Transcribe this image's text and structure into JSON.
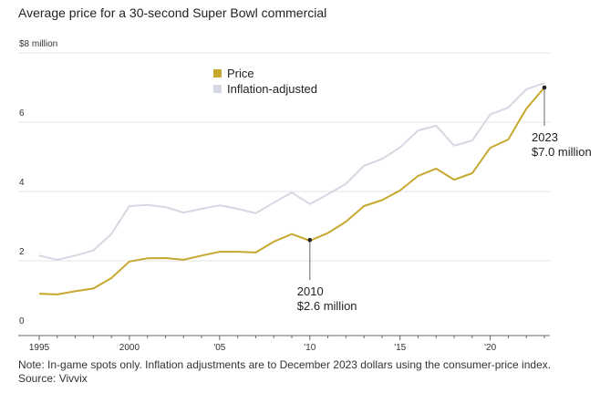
{
  "chart_data": {
    "type": "line",
    "title": "Average price for a 30-second Super Bowl commercial",
    "xlabel": "",
    "ylabel": "",
    "y_unit_label": "$8 million",
    "ylim": [
      0,
      8
    ],
    "xlim": [
      1995,
      2023
    ],
    "grid": true,
    "yticks": [
      {
        "value": 0,
        "label": "0"
      },
      {
        "value": 2,
        "label": "2"
      },
      {
        "value": 4,
        "label": "4"
      },
      {
        "value": 6,
        "label": "6"
      },
      {
        "value": 8,
        "label": "$8 million"
      }
    ],
    "xticks_major": [
      {
        "value": 1995,
        "label": "1995"
      },
      {
        "value": 2000,
        "label": "2000"
      },
      {
        "value": 2005,
        "label": "'05"
      },
      {
        "value": 2010,
        "label": "'10"
      },
      {
        "value": 2015,
        "label": "'15"
      },
      {
        "value": 2020,
        "label": "'20"
      }
    ],
    "x": [
      1995,
      1996,
      1997,
      1998,
      1999,
      2000,
      2001,
      2002,
      2003,
      2004,
      2005,
      2006,
      2007,
      2008,
      2009,
      2010,
      2011,
      2012,
      2013,
      2014,
      2015,
      2016,
      2017,
      2018,
      2019,
      2020,
      2021,
      2022,
      2023
    ],
    "series": [
      {
        "name": "Inflation-adjusted",
        "color": "#d5d8e2",
        "values": [
          2.15,
          2.03,
          2.15,
          2.3,
          2.77,
          3.58,
          3.61,
          3.55,
          3.39,
          3.5,
          3.6,
          3.5,
          3.37,
          3.68,
          3.97,
          3.64,
          3.92,
          4.22,
          4.74,
          4.94,
          5.27,
          5.76,
          5.9,
          5.32,
          5.47,
          6.22,
          6.42,
          6.95,
          7.13
        ]
      },
      {
        "name": "Price",
        "color": "#c6a82f",
        "values": [
          1.05,
          1.03,
          1.12,
          1.2,
          1.5,
          1.98,
          2.07,
          2.08,
          2.03,
          2.15,
          2.26,
          2.26,
          2.24,
          2.55,
          2.77,
          2.58,
          2.8,
          3.13,
          3.58,
          3.75,
          4.03,
          4.45,
          4.66,
          4.34,
          4.53,
          5.26,
          5.5,
          6.39,
          7.0
        ]
      }
    ],
    "legend": {
      "placement": "top-center",
      "entries": [
        {
          "label": "Price",
          "color": "#c6a82f"
        },
        {
          "label": "Inflation-adjusted",
          "color": "#d5d8e2"
        }
      ]
    },
    "annotations": [
      {
        "series": "Price",
        "x": 2010,
        "y": 2.6,
        "line1": "2010",
        "line2": "$2.6 million",
        "position": "below"
      },
      {
        "series": "Price",
        "x": 2023,
        "y": 7.0,
        "line1": "2023",
        "line2": "$7.0 million",
        "position": "below"
      }
    ]
  },
  "footer": {
    "note": "Note: In-game spots only. Inflation adjustments are to December 2023 dollars using the consumer-price index.",
    "source": "Source: Vivvix"
  }
}
